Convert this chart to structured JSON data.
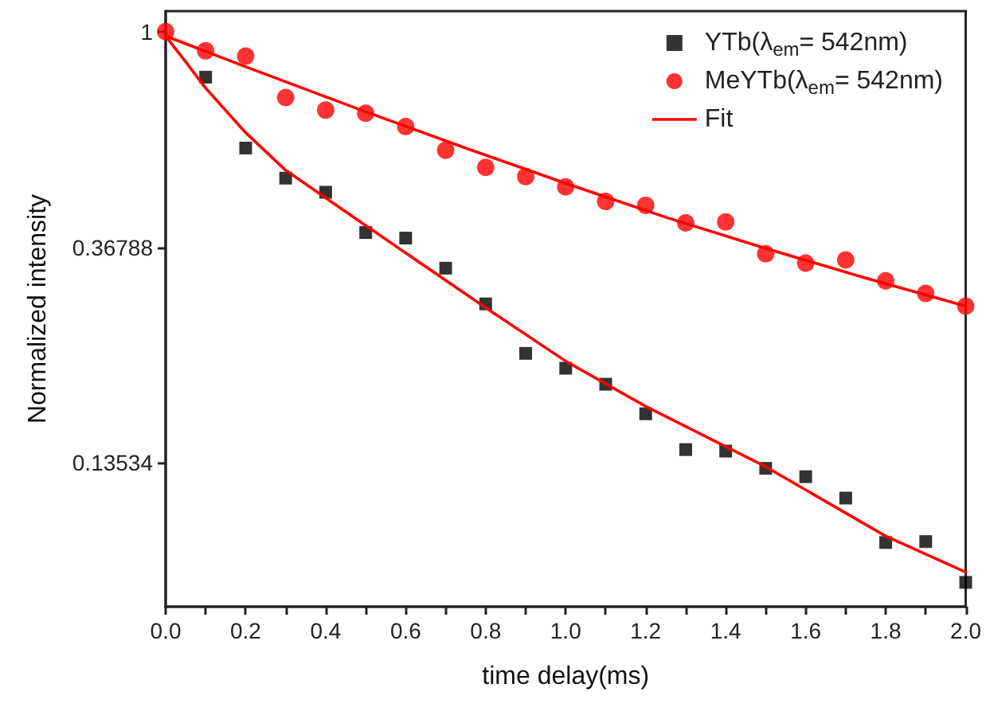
{
  "chart_data": {
    "type": "scatter",
    "xlabel": "time delay(ms)",
    "ylabel": "Normalized intensity",
    "xlim": [
      0,
      2.0
    ],
    "xticks": [
      {
        "value": 0,
        "label": "0.0"
      },
      {
        "value": 0.1,
        "label": null
      },
      0.2,
      {
        "value": 0.3,
        "label": null
      },
      0.4,
      {
        "value": 0.5,
        "label": null
      },
      0.6,
      {
        "value": 0.7,
        "label": null
      },
      0.8,
      {
        "value": 0.9,
        "label": null
      },
      {
        "value": 1.0,
        "label": "1.0"
      },
      {
        "value": 1.1,
        "label": null
      },
      1.2,
      {
        "value": 1.3,
        "label": null
      },
      1.4,
      {
        "value": 1.5,
        "label": null
      },
      1.6,
      {
        "value": 1.7,
        "label": null
      },
      1.8,
      {
        "value": 1.9,
        "label": null
      },
      {
        "value": 2.0,
        "label": "2.0"
      }
    ],
    "ylim": [
      0.0695,
      1.1
    ],
    "yticks": [
      0.13534,
      0.36788,
      1
    ],
    "log": "y",
    "grid": false,
    "legend": "top right",
    "series": [
      {
        "name": "YTb(λ$_{em}$= 542nm)",
        "color": "#000000",
        "marker": "square",
        "x": [
          0.1,
          0.2,
          0.3,
          0.4,
          0.5,
          0.6,
          0.7,
          0.8,
          0.9,
          1.0,
          1.1,
          1.2,
          1.3,
          1.4,
          1.5,
          1.6,
          1.7,
          1.8,
          1.9,
          2.0
        ],
        "values": [
          0.81,
          0.583,
          0.507,
          0.475,
          0.394,
          0.384,
          0.334,
          0.283,
          0.225,
          0.21,
          0.195,
          0.17,
          0.144,
          0.143,
          0.132,
          0.127,
          0.115,
          0.0936,
          0.094,
          0.0778
        ]
      },
      {
        "name": "MeYTb(λ$_{em}$= 542nm)",
        "color": "#ff0000",
        "marker": "circle",
        "x": [
          0,
          0.1,
          0.2,
          0.3,
          0.4,
          0.5,
          0.6,
          0.7,
          0.8,
          0.9,
          1.0,
          1.1,
          1.2,
          1.3,
          1.4,
          1.5,
          1.6,
          1.7,
          1.8,
          1.9,
          2.0
        ],
        "values": [
          1.0,
          0.915,
          0.893,
          0.737,
          0.695,
          0.685,
          0.644,
          0.577,
          0.533,
          0.511,
          0.487,
          0.455,
          0.447,
          0.412,
          0.414,
          0.357,
          0.342,
          0.347,
          0.315,
          0.297,
          0.28
        ]
      },
      {
        "name": "Fit",
        "color": "#ff0000",
        "type": "line",
        "marker": "none",
        "line_style": "solid",
        "x": [
          0,
          0.05,
          0.1,
          0.2,
          0.3,
          0.5,
          0.8,
          1.0,
          1.2,
          1.5,
          1.8,
          2.0
        ],
        "values": [
          0.98,
          0.87,
          0.77,
          0.626,
          0.526,
          0.407,
          0.278,
          0.217,
          0.176,
          0.133,
          0.0964,
          0.0816
        ]
      },
      {
        "color": "#ff0000",
        "type": "line",
        "marker": "none",
        "line_style": "solid",
        "x": [
          0,
          0.2,
          0.5,
          0.75,
          1.0,
          1.25,
          1.5,
          1.75,
          2.0
        ],
        "values": [
          0.98,
          0.85,
          0.69,
          0.583,
          0.495,
          0.423,
          0.366,
          0.319,
          0.28
        ]
      }
    ]
  }
}
